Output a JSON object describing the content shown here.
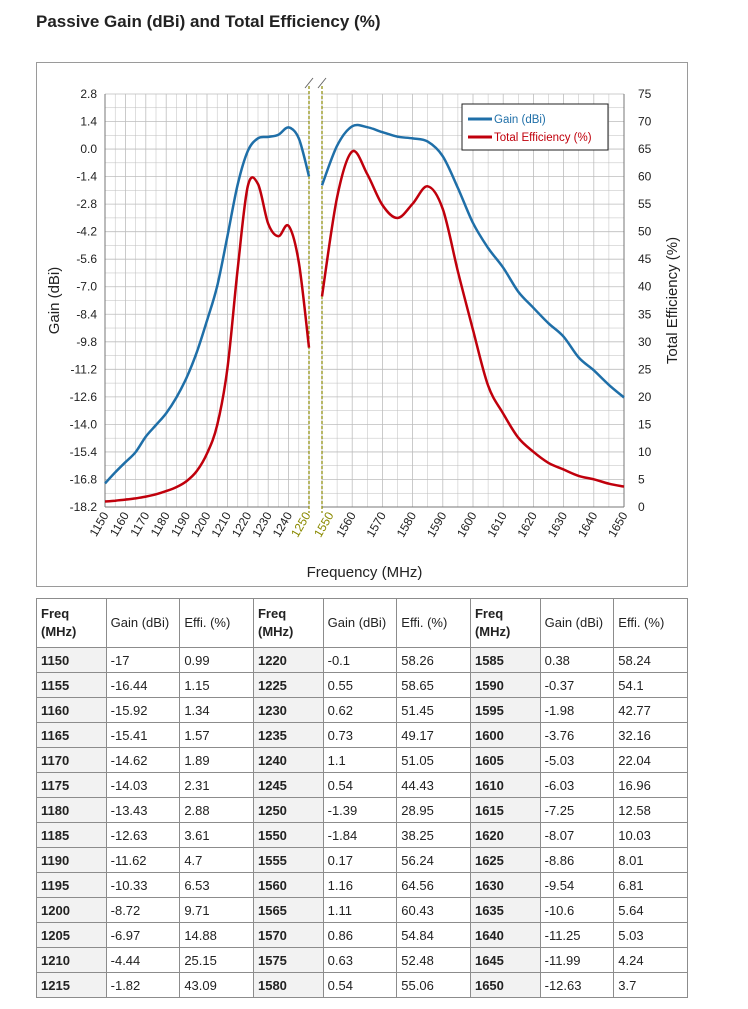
{
  "page_title": "Passive Gain (dBi) and Total Efficiency (%)",
  "colors": {
    "gain": "#1f6fa8",
    "efficiency": "#c0000c",
    "break_line": "#8a8a00",
    "grid": "#bdbdbd"
  },
  "chart_data": {
    "type": "line",
    "xlabel": "Frequency (MHz)",
    "ylabel": "Gain (dBi)",
    "y2label": "Total Efficiency (%)",
    "ylim": [
      -18.2,
      2.8
    ],
    "y2lim": [
      0,
      75
    ],
    "y_ticks": [
      "2.8",
      "1.4",
      "0.0",
      "-1.4",
      "-2.8",
      "-4.2",
      "-5.6",
      "-7.0",
      "-8.4",
      "-9.8",
      "-11.2",
      "-12.6",
      "-14.0",
      "-15.4",
      "-16.8",
      "-18.2"
    ],
    "y2_ticks": [
      "75",
      "70",
      "65",
      "60",
      "55",
      "50",
      "45",
      "40",
      "35",
      "30",
      "25",
      "20",
      "15",
      "10",
      "5",
      "0"
    ],
    "x_ticks_left": [
      "1150",
      "1160",
      "1170",
      "1180",
      "1190",
      "1200",
      "1210",
      "1220",
      "1230",
      "1240",
      "1250"
    ],
    "x_ticks_right": [
      "1550",
      "1560",
      "1570",
      "1580",
      "1590",
      "1600",
      "1610",
      "1620",
      "1630",
      "1640",
      "1650"
    ],
    "axis_break": {
      "left_end": 1250,
      "right_start": 1550
    },
    "legend_position": "top-right",
    "grid": true,
    "series": [
      {
        "name": "Gain (dBi)",
        "axis": "left",
        "x": [
          1150,
          1155,
          1160,
          1165,
          1170,
          1175,
          1180,
          1185,
          1190,
          1195,
          1200,
          1205,
          1210,
          1215,
          1220,
          1225,
          1230,
          1235,
          1240,
          1245,
          1250,
          1550,
          1555,
          1560,
          1565,
          1570,
          1575,
          1580,
          1585,
          1590,
          1595,
          1600,
          1605,
          1610,
          1615,
          1620,
          1625,
          1630,
          1635,
          1640,
          1645,
          1650
        ],
        "values": [
          -17,
          -16.44,
          -15.92,
          -15.41,
          -14.62,
          -14.03,
          -13.43,
          -12.63,
          -11.62,
          -10.33,
          -8.72,
          -6.97,
          -4.44,
          -1.82,
          -0.1,
          0.55,
          0.62,
          0.73,
          1.1,
          0.54,
          -1.39,
          -1.84,
          0.17,
          1.16,
          1.11,
          0.86,
          0.63,
          0.54,
          0.38,
          -0.37,
          -1.98,
          -3.76,
          -5.03,
          -6.03,
          -7.25,
          -8.07,
          -8.86,
          -9.54,
          -10.6,
          -11.25,
          -11.99,
          -12.63
        ]
      },
      {
        "name": "Total Efficiency (%)",
        "axis": "right",
        "x": [
          1150,
          1155,
          1160,
          1165,
          1170,
          1175,
          1180,
          1185,
          1190,
          1195,
          1200,
          1205,
          1210,
          1215,
          1220,
          1225,
          1230,
          1235,
          1240,
          1245,
          1250,
          1550,
          1555,
          1560,
          1565,
          1570,
          1575,
          1580,
          1585,
          1590,
          1595,
          1600,
          1605,
          1610,
          1615,
          1620,
          1625,
          1630,
          1635,
          1640,
          1645,
          1650
        ],
        "values": [
          0.99,
          1.15,
          1.34,
          1.57,
          1.89,
          2.31,
          2.88,
          3.61,
          4.7,
          6.53,
          9.71,
          14.88,
          25.15,
          43.09,
          58.26,
          58.65,
          51.45,
          49.17,
          51.05,
          44.43,
          28.95,
          38.25,
          56.24,
          64.56,
          60.43,
          54.84,
          52.48,
          55.06,
          58.24,
          54.1,
          42.77,
          32.16,
          22.04,
          16.96,
          12.58,
          10.03,
          8.01,
          6.81,
          5.64,
          5.03,
          4.24,
          3.7
        ]
      }
    ]
  },
  "table": {
    "headers": [
      {
        "freq": "Freq (MHz)",
        "gain": "Gain (dBi)",
        "eff": "Effi. (%)"
      },
      {
        "freq": "Freq (MHz)",
        "gain": "Gain (dBi)",
        "eff": "Effi. (%)"
      },
      {
        "freq": "Freq (MHz)",
        "gain": "Gain (dBi)",
        "eff": "Effi. (%)"
      }
    ],
    "rows": [
      [
        "1150",
        "-17",
        "0.99",
        "1220",
        "-0.1",
        "58.26",
        "1585",
        "0.38",
        "58.24"
      ],
      [
        "1155",
        "-16.44",
        "1.15",
        "1225",
        "0.55",
        "58.65",
        "1590",
        "-0.37",
        "54.1"
      ],
      [
        "1160",
        "-15.92",
        "1.34",
        "1230",
        "0.62",
        "51.45",
        "1595",
        "-1.98",
        "42.77"
      ],
      [
        "1165",
        "-15.41",
        "1.57",
        "1235",
        "0.73",
        "49.17",
        "1600",
        "-3.76",
        "32.16"
      ],
      [
        "1170",
        "-14.62",
        "1.89",
        "1240",
        "1.1",
        "51.05",
        "1605",
        "-5.03",
        "22.04"
      ],
      [
        "1175",
        "-14.03",
        "2.31",
        "1245",
        "0.54",
        "44.43",
        "1610",
        "-6.03",
        "16.96"
      ],
      [
        "1180",
        "-13.43",
        "2.88",
        "1250",
        "-1.39",
        "28.95",
        "1615",
        "-7.25",
        "12.58"
      ],
      [
        "1185",
        "-12.63",
        "3.61",
        "1550",
        "-1.84",
        "38.25",
        "1620",
        "-8.07",
        "10.03"
      ],
      [
        "1190",
        "-11.62",
        "4.7",
        "1555",
        "0.17",
        "56.24",
        "1625",
        "-8.86",
        "8.01"
      ],
      [
        "1195",
        "-10.33",
        "6.53",
        "1560",
        "1.16",
        "64.56",
        "1630",
        "-9.54",
        "6.81"
      ],
      [
        "1200",
        "-8.72",
        "9.71",
        "1565",
        "1.11",
        "60.43",
        "1635",
        "-10.6",
        "5.64"
      ],
      [
        "1205",
        "-6.97",
        "14.88",
        "1570",
        "0.86",
        "54.84",
        "1640",
        "-11.25",
        "5.03"
      ],
      [
        "1210",
        "-4.44",
        "25.15",
        "1575",
        "0.63",
        "52.48",
        "1645",
        "-11.99",
        "4.24"
      ],
      [
        "1215",
        "-1.82",
        "43.09",
        "1580",
        "0.54",
        "55.06",
        "1650",
        "-12.63",
        "3.7"
      ]
    ]
  }
}
